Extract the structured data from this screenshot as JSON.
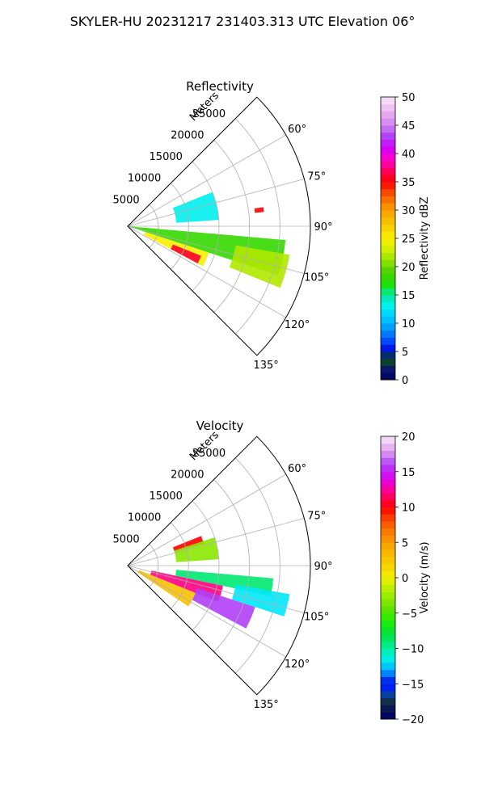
{
  "figure": {
    "title": "SKYLER-HU  20231217  231403.313 UTC Elevation 06°"
  },
  "chart_data": [
    {
      "type": "heatmap",
      "subtype": "polar-sector",
      "title": "Reflectivity",
      "radial_axis_label": "Meters",
      "radial_ticks": [
        "5000",
        "10000",
        "15000",
        "20000",
        "25000"
      ],
      "radial_range": [
        0,
        30000
      ],
      "angle_ticks": [
        "60°",
        "75°",
        "90°",
        "105°",
        "120°",
        "135°"
      ],
      "angle_range_deg": [
        45,
        135
      ],
      "grid": true,
      "colorbar": {
        "label": "Reflectivity dBZ",
        "range": [
          0,
          50
        ],
        "ticks": [
          "0",
          "5",
          "10",
          "15",
          "20",
          "25",
          "30",
          "35",
          "40",
          "45",
          "50"
        ]
      },
      "echo_regions": [
        {
          "az": [
            68,
            86
          ],
          "range": [
            8000,
            15000
          ],
          "value": 13
        },
        {
          "az": [
            82,
            84
          ],
          "range": [
            21000,
            22500
          ],
          "value": 35
        },
        {
          "az": [
            95,
            108
          ],
          "range": [
            0,
            26000
          ],
          "value": 18
        },
        {
          "az": [
            108,
            118
          ],
          "range": [
            3000,
            14000
          ],
          "value": 25
        },
        {
          "az": [
            112,
            118
          ],
          "range": [
            8000,
            13000
          ],
          "value": 36
        },
        {
          "az": [
            100,
            112
          ],
          "range": [
            18000,
            27000
          ],
          "value": 22
        }
      ]
    },
    {
      "type": "heatmap",
      "subtype": "polar-sector",
      "title": "Velocity",
      "radial_axis_label": "Meters",
      "radial_ticks": [
        "5000",
        "10000",
        "15000",
        "20000",
        "25000"
      ],
      "radial_range": [
        0,
        30000
      ],
      "angle_ticks": [
        "60°",
        "75°",
        "90°",
        "105°",
        "120°",
        "135°"
      ],
      "angle_range_deg": [
        45,
        135
      ],
      "grid": true,
      "colorbar": {
        "label": "Velocity (m/s)",
        "range": [
          -20,
          20
        ],
        "ticks": [
          "−20",
          "−15",
          "−10",
          "−5",
          "0",
          "5",
          "10",
          "15",
          "20"
        ]
      },
      "echo_regions": [
        {
          "az": [
            68,
            74
          ],
          "range": [
            8000,
            13000
          ],
          "value": 10
        },
        {
          "az": [
            72,
            86
          ],
          "range": [
            8000,
            15000
          ],
          "value": -3
        },
        {
          "az": [
            95,
            102
          ],
          "range": [
            8000,
            24000
          ],
          "value": -9
        },
        {
          "az": [
            102,
            112
          ],
          "range": [
            4000,
            16000
          ],
          "value": 12
        },
        {
          "az": [
            112,
            124
          ],
          "range": [
            2000,
            12000
          ],
          "value": 3
        },
        {
          "az": [
            108,
            118
          ],
          "range": [
            12000,
            22000
          ],
          "value": 16
        },
        {
          "az": [
            100,
            108
          ],
          "range": [
            18000,
            27000
          ],
          "value": -12
        }
      ]
    }
  ]
}
